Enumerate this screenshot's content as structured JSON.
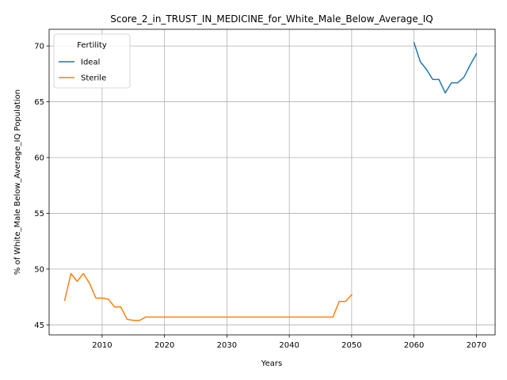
{
  "chart_data": {
    "type": "line",
    "title": "Score_2_in_TRUST_IN_MEDICINE_for_White_Male_Below_Average_IQ",
    "xlabel": "Years",
    "ylabel": "% of White_Male Below_Average_IQ Population",
    "xlim": [
      2001.5,
      2073.0
    ],
    "ylim": [
      44.1,
      71.5
    ],
    "x_ticks": [
      2010,
      2020,
      2030,
      2040,
      2050,
      2060,
      2070
    ],
    "y_ticks": [
      45,
      50,
      55,
      60,
      65,
      70
    ],
    "grid": true,
    "legend": {
      "title": "Fertility",
      "placement": "top-left"
    },
    "series": [
      {
        "name": "Ideal",
        "color": "#1f77b4",
        "x": [
          2060,
          2061,
          2062,
          2063,
          2064,
          2065,
          2066,
          2067,
          2068,
          2069,
          2070
        ],
        "y": [
          70.3,
          68.6,
          67.9,
          67.0,
          67.0,
          65.8,
          66.7,
          66.7,
          67.2,
          68.3,
          69.3
        ]
      },
      {
        "name": "Sterile",
        "color": "#ff7f0e",
        "x": [
          2004,
          2005,
          2006,
          2007,
          2008,
          2009,
          2010,
          2011,
          2012,
          2013,
          2014,
          2015,
          2016,
          2017,
          2018,
          2019,
          2020,
          2021,
          2022,
          2023,
          2024,
          2025,
          2026,
          2027,
          2028,
          2029,
          2030,
          2031,
          2032,
          2033,
          2034,
          2035,
          2036,
          2037,
          2038,
          2039,
          2040,
          2041,
          2042,
          2043,
          2044,
          2045,
          2046,
          2047,
          2048,
          2049,
          2050
        ],
        "y": [
          47.2,
          49.6,
          48.9,
          49.6,
          48.7,
          47.4,
          47.4,
          47.3,
          46.6,
          46.6,
          45.5,
          45.4,
          45.4,
          45.7,
          45.7,
          45.7,
          45.7,
          45.7,
          45.7,
          45.7,
          45.7,
          45.7,
          45.7,
          45.7,
          45.7,
          45.7,
          45.7,
          45.7,
          45.7,
          45.7,
          45.7,
          45.7,
          45.7,
          45.7,
          45.7,
          45.7,
          45.7,
          45.7,
          45.7,
          45.7,
          45.7,
          45.7,
          45.7,
          45.7,
          47.1,
          47.1,
          47.7
        ]
      }
    ]
  }
}
